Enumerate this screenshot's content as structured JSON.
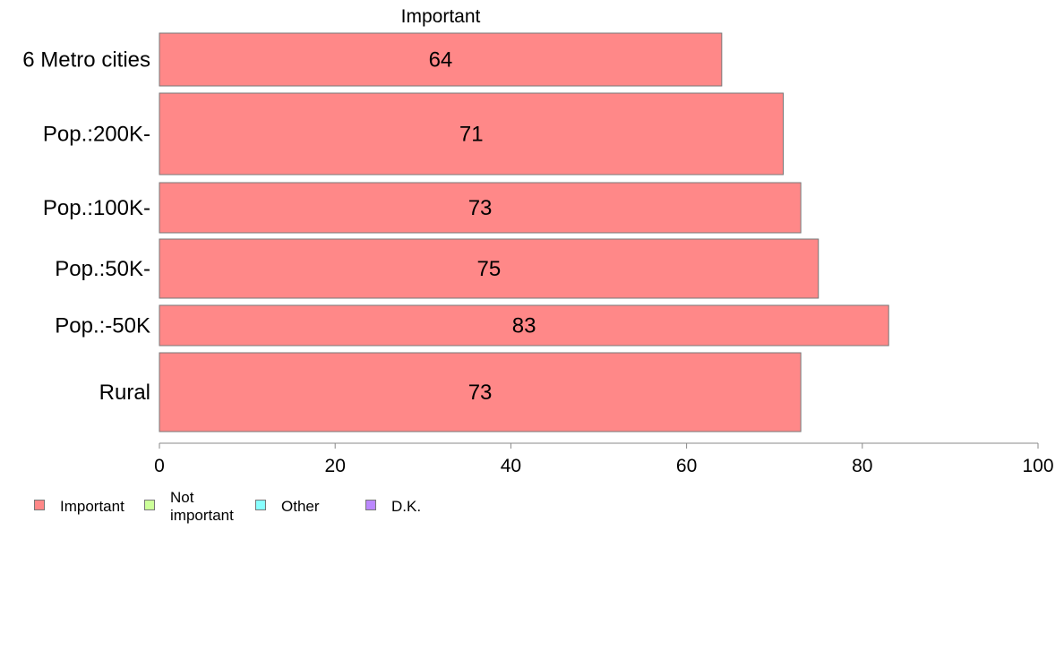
{
  "chart_data": {
    "type": "bar",
    "orientation": "horizontal",
    "stacked": true,
    "title": "Important",
    "categories": [
      "6 Metro cities",
      "Pop.:200K-",
      "Pop.:100K-",
      "Pop.:50K-",
      "Pop.:-50K",
      "Rural"
    ],
    "series": [
      {
        "name": "Important",
        "color": "#ff8888",
        "values": [
          64,
          71,
          73,
          75,
          83,
          73
        ]
      },
      {
        "name": "Not important",
        "color": "#ccff99",
        "values": [
          null,
          null,
          null,
          null,
          null,
          null
        ]
      },
      {
        "name": "Other",
        "color": "#88ffff",
        "values": [
          null,
          null,
          null,
          null,
          null,
          null
        ]
      },
      {
        "name": "D.K.",
        "color": "#bb88ff",
        "values": [
          null,
          null,
          null,
          null,
          null,
          null
        ]
      }
    ],
    "xlim": [
      0,
      100
    ],
    "xticks": [
      "0",
      "20",
      "40",
      "60",
      "80",
      "100"
    ],
    "xlabel": "",
    "ylabel": "",
    "grid": false,
    "legend_position": "bottom-left"
  },
  "legend": [
    {
      "label": "Important",
      "color": "#ff8888"
    },
    {
      "label": "Not important",
      "color": "#ccff99"
    },
    {
      "label": "Other",
      "color": "#88ffff"
    },
    {
      "label": "D.K.",
      "color": "#bb88ff"
    }
  ]
}
